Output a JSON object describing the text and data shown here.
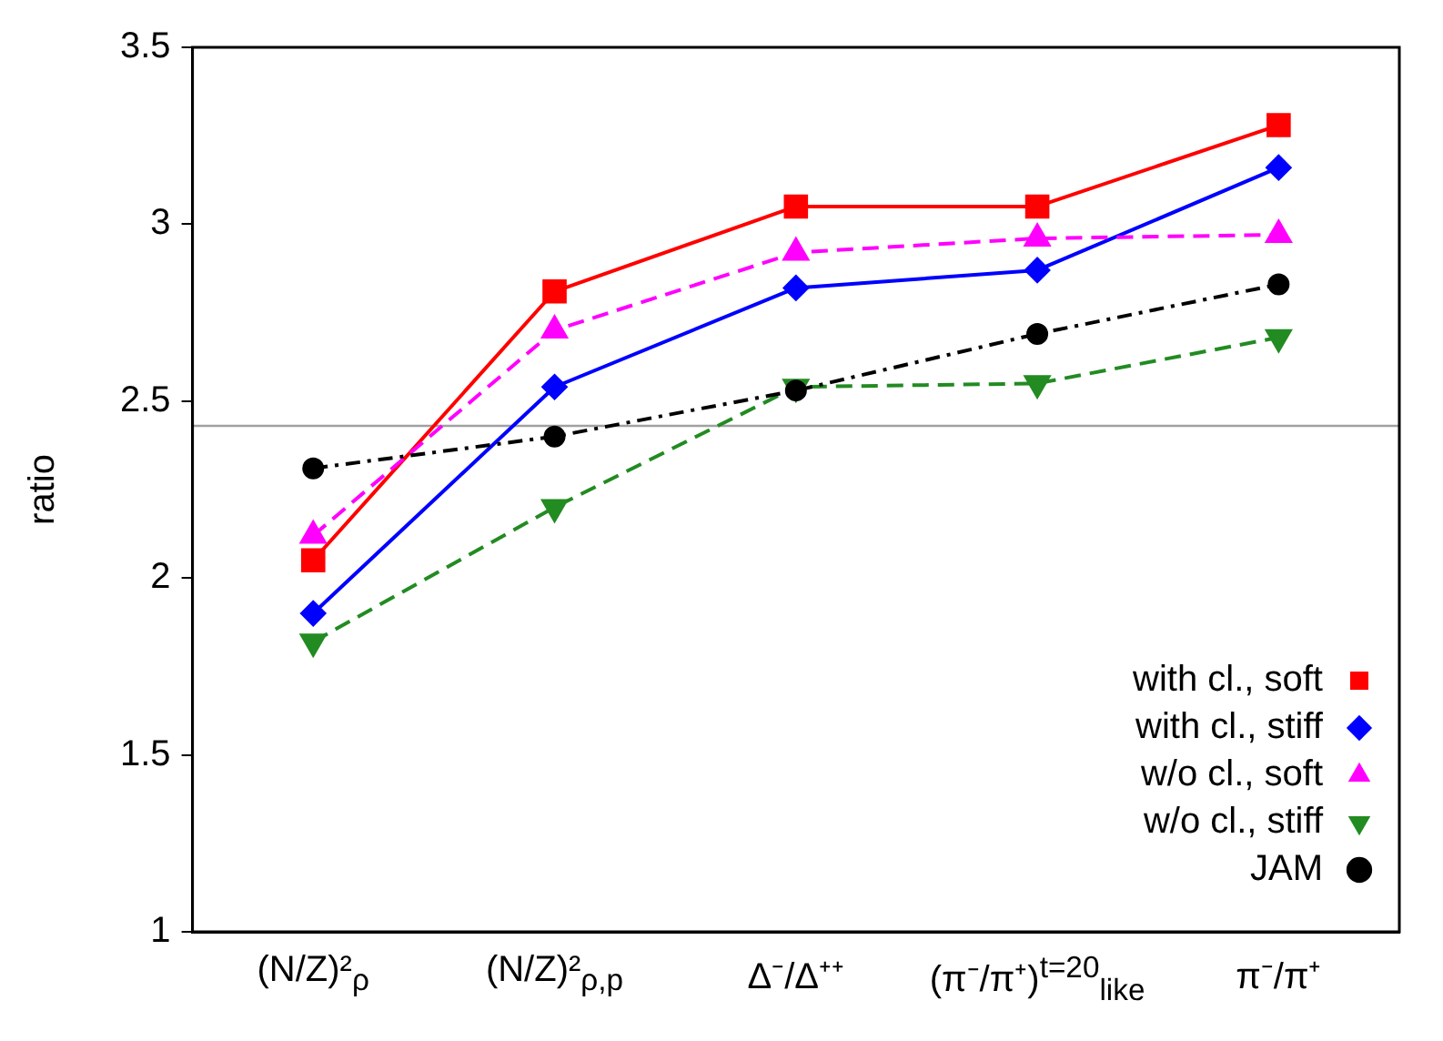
{
  "chart_data": {
    "type": "line",
    "ylabel": "ratio",
    "categories": [
      "(N/Z)²$_{ρ}$",
      "(N/Z)²$_{ρ,p}$",
      "Δ⁻/Δ⁺⁺",
      "(π⁻/π⁺)$^{t=20}$$_{like}$",
      "π⁻/π⁺"
    ],
    "series": [
      {
        "name": "with cl., soft",
        "color": "#ff0000",
        "marker": "square",
        "line_style": "solid",
        "values": [
          2.05,
          2.81,
          3.05,
          3.05,
          3.28
        ]
      },
      {
        "name": "with cl., stiff",
        "color": "#0000ff",
        "marker": "diamond",
        "line_style": "solid",
        "values": [
          1.9,
          2.54,
          2.82,
          2.87,
          3.16
        ]
      },
      {
        "name": "w/o cl., soft",
        "color": "#ff00ff",
        "marker": "triangle",
        "line_style": "dashed",
        "values": [
          2.12,
          2.7,
          2.92,
          2.96,
          2.97
        ]
      },
      {
        "name": "w/o cl., stiff",
        "color": "#228b22",
        "marker": "triangle-down",
        "line_style": "dashed",
        "values": [
          1.82,
          2.2,
          2.54,
          2.55,
          2.68
        ]
      },
      {
        "name": "JAM",
        "color": "#000000",
        "marker": "circle",
        "line_style": "dashdot",
        "values": [
          2.31,
          2.4,
          2.53,
          2.69,
          2.83
        ]
      }
    ],
    "ylim": [
      1,
      3.5
    ],
    "yticks": [
      1,
      1.5,
      2,
      2.5,
      3,
      3.5
    ],
    "grid": false,
    "legend": "bottom right",
    "ref_lines": [
      {
        "axis": "y",
        "value": 2.43,
        "color": "#a0a0a0"
      }
    ]
  }
}
